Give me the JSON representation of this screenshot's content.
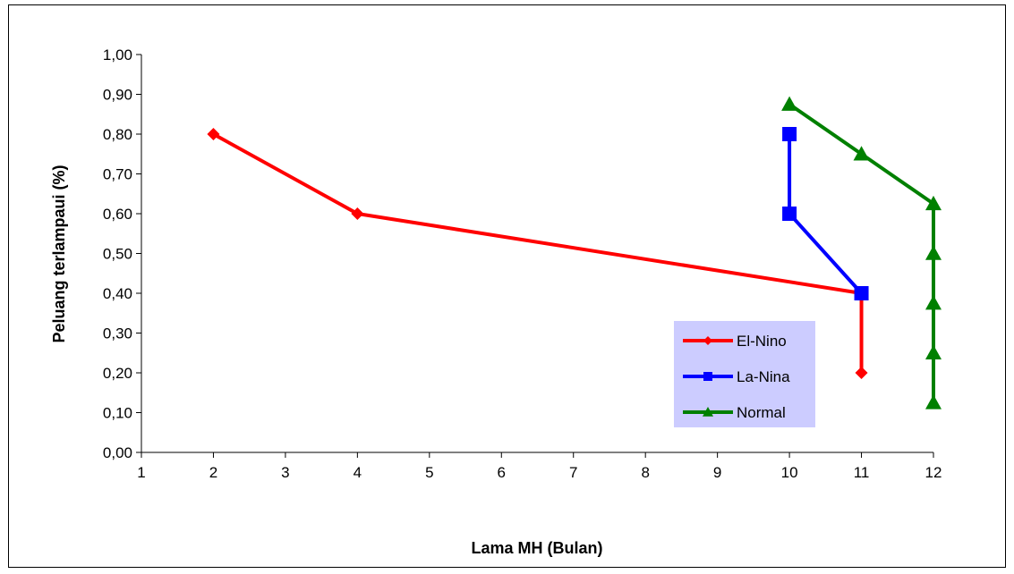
{
  "chart_data": {
    "type": "line",
    "xlabel": "Lama MH (Bulan)",
    "ylabel": "Peluang terlampaui (%)",
    "xlim": [
      1,
      12
    ],
    "ylim": [
      0,
      1
    ],
    "x_ticks": [
      "1",
      "2",
      "3",
      "4",
      "5",
      "6",
      "7",
      "8",
      "9",
      "10",
      "11",
      "12"
    ],
    "y_ticks": [
      "0,00",
      "0,10",
      "0,20",
      "0,30",
      "0,40",
      "0,50",
      "0,60",
      "0,70",
      "0,80",
      "0,90",
      "1,00"
    ],
    "grid": false,
    "legend_position": "lower-right",
    "series": [
      {
        "name": "El-Nino",
        "color": "#ff0000",
        "marker": "diamond",
        "points": [
          [
            2,
            0.8
          ],
          [
            4,
            0.6
          ],
          [
            11,
            0.4
          ],
          [
            11,
            0.2
          ]
        ]
      },
      {
        "name": "La-Nina",
        "color": "#0000ff",
        "marker": "square",
        "points": [
          [
            10,
            0.8
          ],
          [
            10,
            0.6
          ],
          [
            11,
            0.4
          ]
        ]
      },
      {
        "name": "Normal",
        "color": "#008000",
        "marker": "triangle",
        "points": [
          [
            10,
            0.875
          ],
          [
            11,
            0.75
          ],
          [
            12,
            0.625
          ],
          [
            12,
            0.5
          ],
          [
            12,
            0.375
          ],
          [
            12,
            0.25
          ],
          [
            12,
            0.125
          ]
        ]
      }
    ],
    "legend_background": "#ccccff"
  }
}
